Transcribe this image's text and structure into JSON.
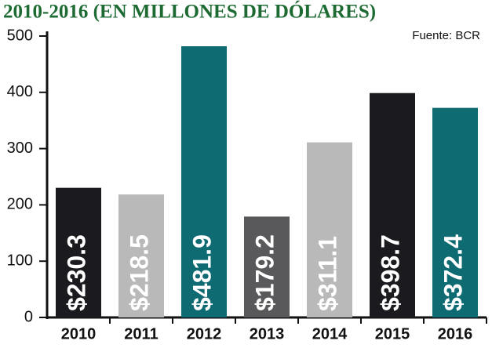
{
  "chart_data": {
    "type": "bar",
    "title": "2010-2016 (EN MILLONES DE DÓLARES)",
    "source": "Fuente: BCR",
    "categories": [
      "2010",
      "2011",
      "2012",
      "2013",
      "2014",
      "2015",
      "2016"
    ],
    "values": [
      230.3,
      218.5,
      481.9,
      179.2,
      311.1,
      398.7,
      372.4
    ],
    "value_labels": [
      "$230.3",
      "$218.5",
      "$481.9",
      "$179.2",
      "$311.1",
      "$398.7",
      "$372.4"
    ],
    "colors": [
      "#1b1a1f",
      "#b9b9b9",
      "#0e6b72",
      "#59595b",
      "#b9b9b9",
      "#1b1a1f",
      "#0e6b72"
    ],
    "ylim": [
      0,
      500
    ],
    "yticks": [
      0,
      100,
      200,
      300,
      400,
      500
    ],
    "grid": false
  }
}
